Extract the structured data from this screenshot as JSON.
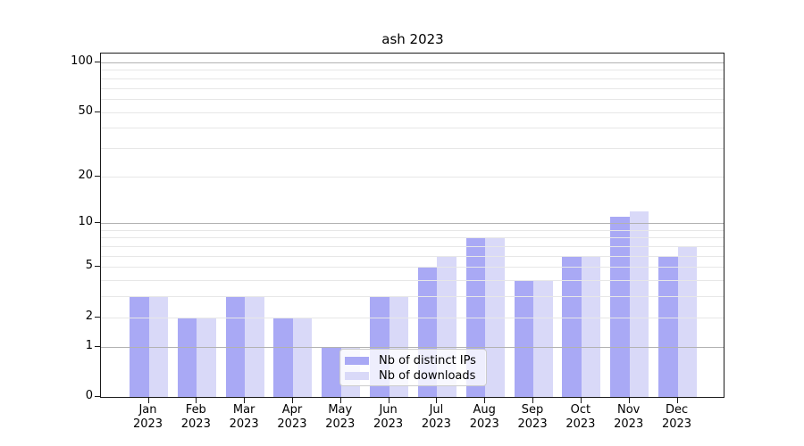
{
  "title": "ash 2023",
  "chart_data": {
    "type": "bar",
    "title": "ash 2023",
    "categories": [
      "Jan 2023",
      "Feb 2023",
      "Mar 2023",
      "Apr 2023",
      "May 2023",
      "Jun 2023",
      "Jul 2023",
      "Aug 2023",
      "Sep 2023",
      "Oct 2023",
      "Nov 2023",
      "Dec 2023"
    ],
    "series": [
      {
        "name": "Nb of distinct IPs",
        "color": "#a9a9f5",
        "values": [
          3,
          2,
          3,
          2,
          1,
          3,
          5,
          8,
          4,
          6,
          11,
          6
        ]
      },
      {
        "name": "Nb of downloads",
        "color": "#d9d9f8",
        "values": [
          3,
          2,
          3,
          2,
          1,
          3,
          6,
          8,
          4,
          6,
          12,
          7
        ]
      }
    ],
    "xlabel": "",
    "ylabel": "",
    "yscale": "log10(1+value)",
    "ylim": [
      0,
      100
    ],
    "yticks_labeled": [
      0,
      1,
      2,
      5,
      10,
      20,
      50,
      100
    ],
    "gridlines_minor": [
      2,
      3,
      4,
      5,
      6,
      7,
      8,
      9,
      20,
      30,
      40,
      50,
      60,
      70,
      80,
      90
    ],
    "gridlines_major": [
      1,
      10,
      100
    ],
    "grid": true,
    "legend_position": "lower center (inside plot)"
  },
  "colors": {
    "bar_dark": "#a9a9f5",
    "bar_light": "#d9d9f8",
    "grid_major": "#b2b2b2",
    "grid_minor": "#e7e7e7",
    "axis": "#1a1a1a",
    "legend_border": "#cccccc"
  }
}
